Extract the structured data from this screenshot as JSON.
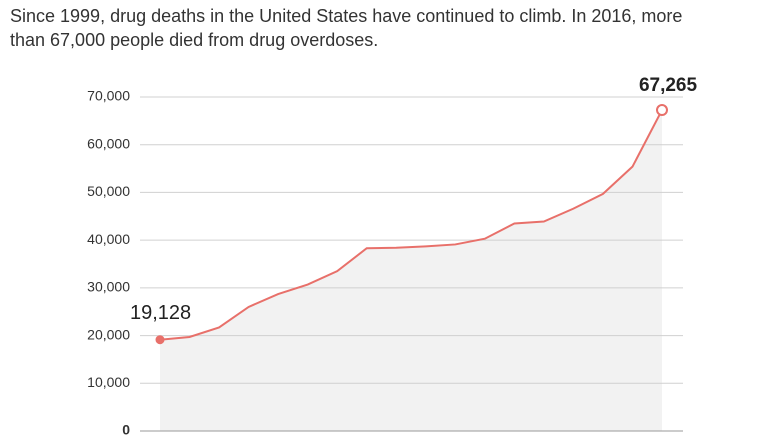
{
  "chart_data": {
    "type": "area",
    "title": "Since 1999, drug deaths in the United States have continued to climb. In 2016, more than 67,000 people died from drug overdoses.",
    "categories": [
      null,
      null,
      null,
      null,
      null,
      null,
      null,
      null,
      null,
      null,
      null,
      null,
      null,
      null,
      null,
      null,
      null,
      null
    ],
    "values": [
      19128,
      19700,
      21700,
      26000,
      28700,
      30700,
      33500,
      38300,
      38400,
      38700,
      39100,
      40300,
      43500,
      43900,
      46600,
      49700,
      55400,
      67265
    ],
    "value_labels": [
      "19,128",
      null,
      null,
      null,
      null,
      null,
      null,
      null,
      null,
      null,
      null,
      null,
      null,
      null,
      null,
      null,
      null,
      "67,265"
    ],
    "color": "#e8706a",
    "area_color": "#f2f2f2",
    "ylim": [
      0,
      70000
    ],
    "yticks": [
      0,
      {
        "value": 10000,
        "label": "10,000"
      },
      {
        "value": 20000,
        "label": "20,000"
      },
      {
        "value": 30000,
        "label": "30,000"
      },
      {
        "value": 40000,
        "label": "40,000"
      },
      {
        "value": 50000,
        "label": "50,000"
      },
      {
        "value": 60000,
        "label": "60,000"
      },
      {
        "value": 70000,
        "label": "70,000"
      }
    ],
    "grid": true
  }
}
